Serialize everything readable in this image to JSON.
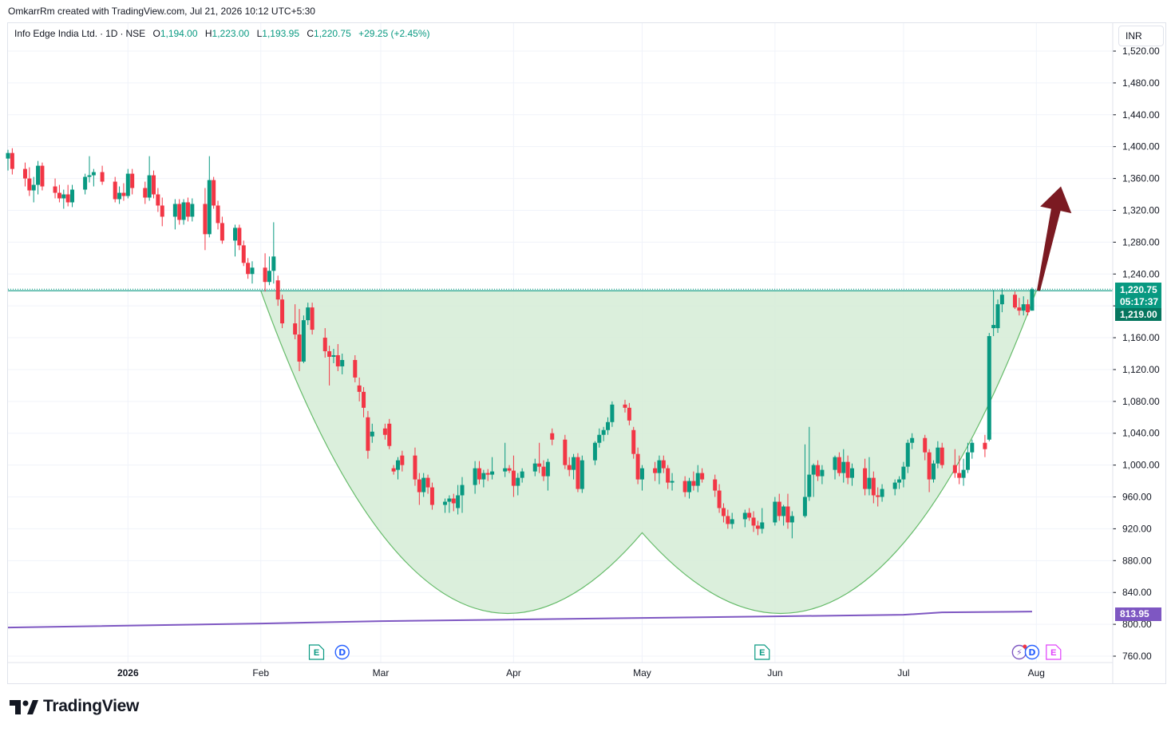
{
  "header": {
    "creator_text": "OmkarrRm created with TradingView.com, Jul 21, 2026 10:12 UTC+5:30"
  },
  "legend": {
    "symbol": "Info Edge India Ltd.",
    "interval": "1D",
    "exchange": "NSE",
    "o_label": "O",
    "o_value": "1,194.00",
    "h_label": "H",
    "h_value": "1,223.00",
    "l_label": "L",
    "l_value": "1,193.95",
    "c_label": "C",
    "c_value": "1,220.75",
    "change": "+29.25 (+2.45%)"
  },
  "currency_button": "INR",
  "price_tags": {
    "last_price": "1,220.75",
    "countdown": "05:17:37",
    "prev_price": "1,219.00",
    "ma_value": "813.95"
  },
  "brand": {
    "name": "TradingView"
  },
  "colors": {
    "up": "#089981",
    "down": "#f23645",
    "fill": "#d5ecd6",
    "curve": "#66bb6a",
    "ma": "#7e57c2",
    "arrow": "#7b1a22",
    "grid": "#f0f3fa"
  },
  "chart_data": {
    "type": "candlestick",
    "ylim": [
      750,
      1535
    ],
    "y_ticks": [
      "1,520.00",
      "1,480.00",
      "1,440.00",
      "1,400.00",
      "1,360.00",
      "1,320.00",
      "1,280.00",
      "1,240.00",
      "1,200.00",
      "1,160.00",
      "1,120.00",
      "1,080.00",
      "1,040.00",
      "1,000.00",
      "960.00",
      "920.00",
      "880.00",
      "840.00",
      "800.00",
      "760.00"
    ],
    "x_ticks": [
      {
        "label": "2026",
        "date": "2026-01-01"
      },
      {
        "label": "Feb",
        "date": "2026-02-01"
      },
      {
        "label": "Mar",
        "date": "2026-03-01"
      },
      {
        "label": "Apr",
        "date": "2026-04-01"
      },
      {
        "label": "May",
        "date": "2026-05-01"
      },
      {
        "label": "Jun",
        "date": "2026-06-01"
      },
      {
        "label": "Jul",
        "date": "2026-07-01"
      },
      {
        "label": "Aug",
        "date": "2026-08-01"
      }
    ],
    "x_range": [
      "2025-12-04",
      "2026-08-11"
    ],
    "horizontal_level": 1219,
    "ohlc": [
      [
        "2025-12-04",
        1385,
        1396,
        1370,
        1392
      ],
      [
        "2025-12-05",
        1392,
        1398,
        1365,
        1372
      ],
      [
        "2025-12-08",
        1372,
        1380,
        1350,
        1360
      ],
      [
        "2025-12-09",
        1360,
        1374,
        1338,
        1345
      ],
      [
        "2025-12-10",
        1345,
        1362,
        1330,
        1352
      ],
      [
        "2025-12-11",
        1352,
        1382,
        1340,
        1376
      ],
      [
        "2025-12-12",
        1376,
        1380,
        1345,
        1350
      ],
      [
        "2025-12-15",
        1350,
        1360,
        1335,
        1342
      ],
      [
        "2025-12-16",
        1342,
        1352,
        1330,
        1335
      ],
      [
        "2025-12-17",
        1335,
        1346,
        1322,
        1340
      ],
      [
        "2025-12-18",
        1340,
        1352,
        1325,
        1330
      ],
      [
        "2025-12-19",
        1330,
        1352,
        1324,
        1346
      ],
      [
        "2025-12-22",
        1346,
        1366,
        1340,
        1362
      ],
      [
        "2025-12-23",
        1362,
        1388,
        1355,
        1364
      ],
      [
        "2025-12-24",
        1364,
        1372,
        1350,
        1368
      ],
      [
        "2025-12-26",
        1368,
        1376,
        1352,
        1356
      ],
      [
        "2025-12-29",
        1356,
        1362,
        1330,
        1334
      ],
      [
        "2025-12-30",
        1334,
        1350,
        1328,
        1342
      ],
      [
        "2025-12-31",
        1342,
        1354,
        1332,
        1338
      ],
      [
        "2026-01-01",
        1338,
        1372,
        1335,
        1366
      ],
      [
        "2026-01-02",
        1366,
        1372,
        1340,
        1348
      ],
      [
        "2026-01-05",
        1348,
        1356,
        1328,
        1336
      ],
      [
        "2026-01-06",
        1336,
        1388,
        1332,
        1364
      ],
      [
        "2026-01-07",
        1364,
        1370,
        1335,
        1340
      ],
      [
        "2026-01-08",
        1340,
        1348,
        1318,
        1326
      ],
      [
        "2026-01-09",
        1326,
        1336,
        1300,
        1312
      ],
      [
        "2026-01-12",
        1312,
        1334,
        1296,
        1328
      ],
      [
        "2026-01-13",
        1328,
        1334,
        1302,
        1308
      ],
      [
        "2026-01-14",
        1308,
        1334,
        1302,
        1330
      ],
      [
        "2026-01-15",
        1330,
        1336,
        1306,
        1312
      ],
      [
        "2026-01-16",
        1312,
        1335,
        1306,
        1328
      ],
      [
        "2026-01-19",
        1328,
        1348,
        1270,
        1290
      ],
      [
        "2026-01-20",
        1290,
        1388,
        1286,
        1358
      ],
      [
        "2026-01-21",
        1358,
        1362,
        1322,
        1326
      ],
      [
        "2026-01-22",
        1326,
        1332,
        1296,
        1304
      ],
      [
        "2026-01-23",
        1304,
        1312,
        1278,
        1282
      ],
      [
        "2026-01-26",
        1282,
        1302,
        1262,
        1298
      ],
      [
        "2026-01-27",
        1298,
        1302,
        1270,
        1276
      ],
      [
        "2026-01-28",
        1276,
        1282,
        1250,
        1254
      ],
      [
        "2026-01-29",
        1254,
        1260,
        1234,
        1240
      ],
      [
        "2026-01-30",
        1240,
        1256,
        1228,
        1248
      ],
      [
        "2026-02-02",
        1248,
        1266,
        1218,
        1230
      ],
      [
        "2026-02-03",
        1230,
        1262,
        1226,
        1244
      ],
      [
        "2026-02-04",
        1244,
        1305,
        1228,
        1262
      ],
      [
        "2026-02-05",
        1232,
        1238,
        1200,
        1208
      ],
      [
        "2026-02-06",
        1208,
        1214,
        1172,
        1178
      ],
      [
        "2026-02-09",
        1178,
        1202,
        1158,
        1164
      ],
      [
        "2026-02-10",
        1164,
        1196,
        1118,
        1130
      ],
      [
        "2026-02-11",
        1130,
        1188,
        1128,
        1182
      ],
      [
        "2026-02-12",
        1182,
        1204,
        1176,
        1198
      ],
      [
        "2026-02-13",
        1198,
        1204,
        1164,
        1170
      ],
      [
        "2026-02-16",
        1160,
        1172,
        1135,
        1143
      ],
      [
        "2026-02-17",
        1143,
        1150,
        1100,
        1136
      ],
      [
        "2026-02-18",
        1136,
        1146,
        1128,
        1138
      ],
      [
        "2026-02-19",
        1138,
        1152,
        1118,
        1124
      ],
      [
        "2026-02-20",
        1124,
        1140,
        1114,
        1132
      ],
      [
        "2026-02-23",
        1132,
        1138,
        1104,
        1110
      ],
      [
        "2026-02-24",
        1100,
        1110,
        1080,
        1092
      ],
      [
        "2026-02-25",
        1092,
        1098,
        1060,
        1072
      ],
      [
        "2026-02-26",
        1060,
        1068,
        1008,
        1018
      ],
      [
        "2026-02-27",
        1036,
        1052,
        1028,
        1042
      ],
      [
        "2026-03-02",
        1046,
        1052,
        1032,
        1038
      ],
      [
        "2026-03-03",
        1052,
        1058,
        1020,
        1024
      ],
      [
        "2026-03-04",
        996,
        1000,
        988,
        992
      ],
      [
        "2026-03-05",
        994,
        1010,
        982,
        1006
      ],
      [
        "2026-03-06",
        1012,
        1018,
        992,
        1000
      ],
      [
        "2026-03-09",
        1012,
        1022,
        974,
        982
      ],
      [
        "2026-03-10",
        982,
        990,
        950,
        966
      ],
      [
        "2026-03-11",
        966,
        990,
        960,
        984
      ],
      [
        "2026-03-12",
        984,
        988,
        964,
        972
      ],
      [
        "2026-03-13",
        972,
        978,
        944,
        950
      ],
      [
        "2026-03-16",
        950,
        958,
        940,
        954
      ],
      [
        "2026-03-17",
        954,
        962,
        940,
        958
      ],
      [
        "2026-03-18",
        958,
        964,
        942,
        952
      ],
      [
        "2026-03-19",
        946,
        975,
        938,
        962
      ],
      [
        "2026-03-20",
        962,
        985,
        940,
        975
      ],
      [
        "2026-03-23",
        975,
        1005,
        964,
        996
      ],
      [
        "2026-03-24",
        996,
        1005,
        976,
        982
      ],
      [
        "2026-03-25",
        982,
        994,
        972,
        990
      ],
      [
        "2026-03-26",
        990,
        995,
        980,
        988
      ],
      [
        "2026-03-27",
        988,
        1010,
        982,
        992
      ],
      [
        "2026-03-30",
        992,
        1028,
        985,
        996
      ],
      [
        "2026-03-31",
        996,
        1000,
        990,
        993
      ],
      [
        "2026-04-01",
        993,
        1012,
        960,
        974
      ],
      [
        "2026-04-02",
        974,
        990,
        962,
        984
      ],
      [
        "2026-04-03",
        984,
        996,
        978,
        992
      ],
      [
        "2026-04-06",
        992,
        1008,
        986,
        1002
      ],
      [
        "2026-04-07",
        1002,
        1028,
        990,
        998
      ],
      [
        "2026-04-08",
        998,
        1006,
        980,
        986
      ],
      [
        "2026-04-09",
        986,
        1008,
        968,
        1004
      ],
      [
        "2026-04-10",
        1040,
        1046,
        1025,
        1032
      ],
      [
        "2026-04-13",
        1032,
        1038,
        995,
        1000
      ],
      [
        "2026-04-14",
        1000,
        1010,
        986,
        994
      ],
      [
        "2026-04-15",
        994,
        1014,
        982,
        1010
      ],
      [
        "2026-04-16",
        1010,
        1015,
        966,
        970
      ],
      [
        "2026-04-17",
        970,
        1012,
        965,
        1006
      ],
      [
        "2026-04-20",
        1006,
        1030,
        1000,
        1028
      ],
      [
        "2026-04-21",
        1028,
        1046,
        1022,
        1038
      ],
      [
        "2026-04-22",
        1038,
        1048,
        1030,
        1044
      ],
      [
        "2026-04-23",
        1044,
        1060,
        1038,
        1054
      ],
      [
        "2026-04-24",
        1054,
        1080,
        1048,
        1076
      ],
      [
        "2026-04-27",
        1076,
        1082,
        1066,
        1072
      ],
      [
        "2026-04-28",
        1072,
        1078,
        1050,
        1056
      ],
      [
        "2026-04-29",
        1044,
        1048,
        1008,
        1014
      ],
      [
        "2026-04-30",
        1014,
        1022,
        976,
        982
      ],
      [
        "2026-05-01",
        982,
        1000,
        968,
        996
      ],
      [
        "2026-05-04",
        996,
        1004,
        980,
        990
      ],
      [
        "2026-05-05",
        990,
        1012,
        976,
        1006
      ],
      [
        "2026-05-06",
        1006,
        1012,
        990,
        996
      ],
      [
        "2026-05-07",
        996,
        1000,
        970,
        978
      ],
      [
        "2026-05-08",
        978,
        990,
        968,
        980
      ],
      [
        "2026-05-11",
        980,
        986,
        960,
        966
      ],
      [
        "2026-05-12",
        966,
        984,
        958,
        980
      ],
      [
        "2026-05-13",
        980,
        992,
        968,
        974
      ],
      [
        "2026-05-14",
        974,
        1000,
        966,
        990
      ],
      [
        "2026-05-15",
        990,
        996,
        978,
        982
      ],
      [
        "2026-05-18",
        982,
        988,
        960,
        968
      ],
      [
        "2026-05-19",
        968,
        976,
        940,
        946
      ],
      [
        "2026-05-20",
        946,
        952,
        928,
        936
      ],
      [
        "2026-05-21",
        936,
        944,
        920,
        926
      ],
      [
        "2026-05-22",
        926,
        940,
        920,
        932
      ],
      [
        "2026-05-25",
        932,
        944,
        922,
        940
      ],
      [
        "2026-05-26",
        940,
        946,
        930,
        934
      ],
      [
        "2026-05-27",
        934,
        942,
        916,
        924
      ],
      [
        "2026-05-28",
        924,
        930,
        912,
        920
      ],
      [
        "2026-05-29",
        920,
        946,
        914,
        928
      ],
      [
        "2026-06-01",
        928,
        960,
        924,
        954
      ],
      [
        "2026-06-02",
        954,
        964,
        930,
        936
      ],
      [
        "2026-06-03",
        936,
        950,
        924,
        948
      ],
      [
        "2026-06-04",
        948,
        964,
        920,
        928
      ],
      [
        "2026-06-05",
        928,
        942,
        908,
        936
      ],
      [
        "2026-06-08",
        936,
        1026,
        934,
        960
      ],
      [
        "2026-06-09",
        960,
        1048,
        955,
        988
      ],
      [
        "2026-06-10",
        988,
        1002,
        960,
        1000
      ],
      [
        "2026-06-11",
        1000,
        1006,
        980,
        986
      ],
      [
        "2026-06-12",
        986,
        1000,
        976,
        994
      ],
      [
        "2026-06-15",
        994,
        1012,
        982,
        1010
      ],
      [
        "2026-06-16",
        1010,
        1016,
        986,
        990
      ],
      [
        "2026-06-17",
        990,
        1020,
        978,
        1004
      ],
      [
        "2026-06-18",
        1004,
        1012,
        976,
        984
      ],
      [
        "2026-06-19",
        984,
        1002,
        974,
        996
      ],
      [
        "2026-06-22",
        996,
        1008,
        962,
        970
      ],
      [
        "2026-06-23",
        970,
        1010,
        962,
        984
      ],
      [
        "2026-06-24",
        984,
        992,
        952,
        962
      ],
      [
        "2026-06-25",
        962,
        972,
        948,
        960
      ],
      [
        "2026-06-26",
        960,
        976,
        954,
        970
      ],
      [
        "2026-06-29",
        970,
        982,
        962,
        978
      ],
      [
        "2026-06-30",
        978,
        986,
        970,
        982
      ],
      [
        "2026-07-01",
        982,
        1004,
        972,
        998
      ],
      [
        "2026-07-02",
        998,
        1032,
        990,
        1028
      ],
      [
        "2026-07-03",
        1028,
        1040,
        1020,
        1034
      ],
      [
        "2026-07-06",
        1034,
        1038,
        1006,
        1016
      ],
      [
        "2026-07-07",
        1016,
        1020,
        966,
        982
      ],
      [
        "2026-07-08",
        982,
        1006,
        978,
        1002
      ],
      [
        "2026-07-09",
        1002,
        1030,
        996,
        1022
      ],
      [
        "2026-07-10",
        1022,
        1028,
        996,
        1000
      ],
      [
        "2026-07-13",
        1000,
        1020,
        984,
        990
      ],
      [
        "2026-07-14",
        990,
        1012,
        976,
        984
      ],
      [
        "2026-07-15",
        984,
        1008,
        974,
        994
      ],
      [
        "2026-07-16",
        994,
        1028,
        990,
        1016
      ],
      [
        "2026-07-17",
        1016,
        1032,
        1008,
        1028
      ],
      [
        "2026-07-20",
        1028,
        1038,
        1010,
        1020
      ],
      [
        "2026-07-21",
        1032,
        1166,
        1030,
        1162
      ],
      [
        "2026-07-22",
        1172,
        1220,
        1162,
        1176
      ],
      [
        "2026-07-23",
        1172,
        1208,
        1166,
        1202
      ],
      [
        "2026-07-24",
        1202,
        1222,
        1192,
        1214
      ],
      [
        "2026-07-27",
        1214,
        1218,
        1196,
        1198
      ],
      [
        "2026-07-28",
        1198,
        1210,
        1188,
        1194
      ],
      [
        "2026-07-29",
        1194,
        1212,
        1188,
        1202
      ],
      [
        "2026-07-30",
        1202,
        1208,
        1188,
        1192
      ],
      [
        "2026-07-31",
        1194,
        1223,
        1193.95,
        1220.75
      ]
    ],
    "moving_average": [
      [
        "2025-12-04",
        796
      ],
      [
        "2026-02-01",
        801
      ],
      [
        "2026-03-01",
        804
      ],
      [
        "2026-04-01",
        806
      ],
      [
        "2026-05-01",
        808
      ],
      [
        "2026-06-01",
        810
      ],
      [
        "2026-07-01",
        812
      ],
      [
        "2026-07-10",
        815
      ],
      [
        "2026-07-31",
        816
      ]
    ],
    "annotation_events": [
      {
        "kind": "earnings",
        "label": "E",
        "date": "2026-02-14"
      },
      {
        "kind": "dividend",
        "label": "D",
        "date": "2026-02-20"
      },
      {
        "kind": "earnings",
        "label": "E",
        "date": "2026-05-29"
      },
      {
        "kind": "split",
        "label": "⚡",
        "date": "2026-07-28"
      },
      {
        "kind": "dividend",
        "label": "D",
        "date": "2026-07-31"
      },
      {
        "kind": "earnings",
        "label": "E",
        "date": "2026-08-05"
      }
    ],
    "cup_pattern": {
      "start": [
        "2026-02-01",
        1219
      ],
      "bottom": [
        "2026-05-01",
        915
      ],
      "end": [
        "2026-08-01",
        1219
      ]
    },
    "arrow": {
      "from": [
        "2026-07-31",
        1219
      ],
      "to": [
        "2026-08-03",
        1350
      ]
    }
  }
}
